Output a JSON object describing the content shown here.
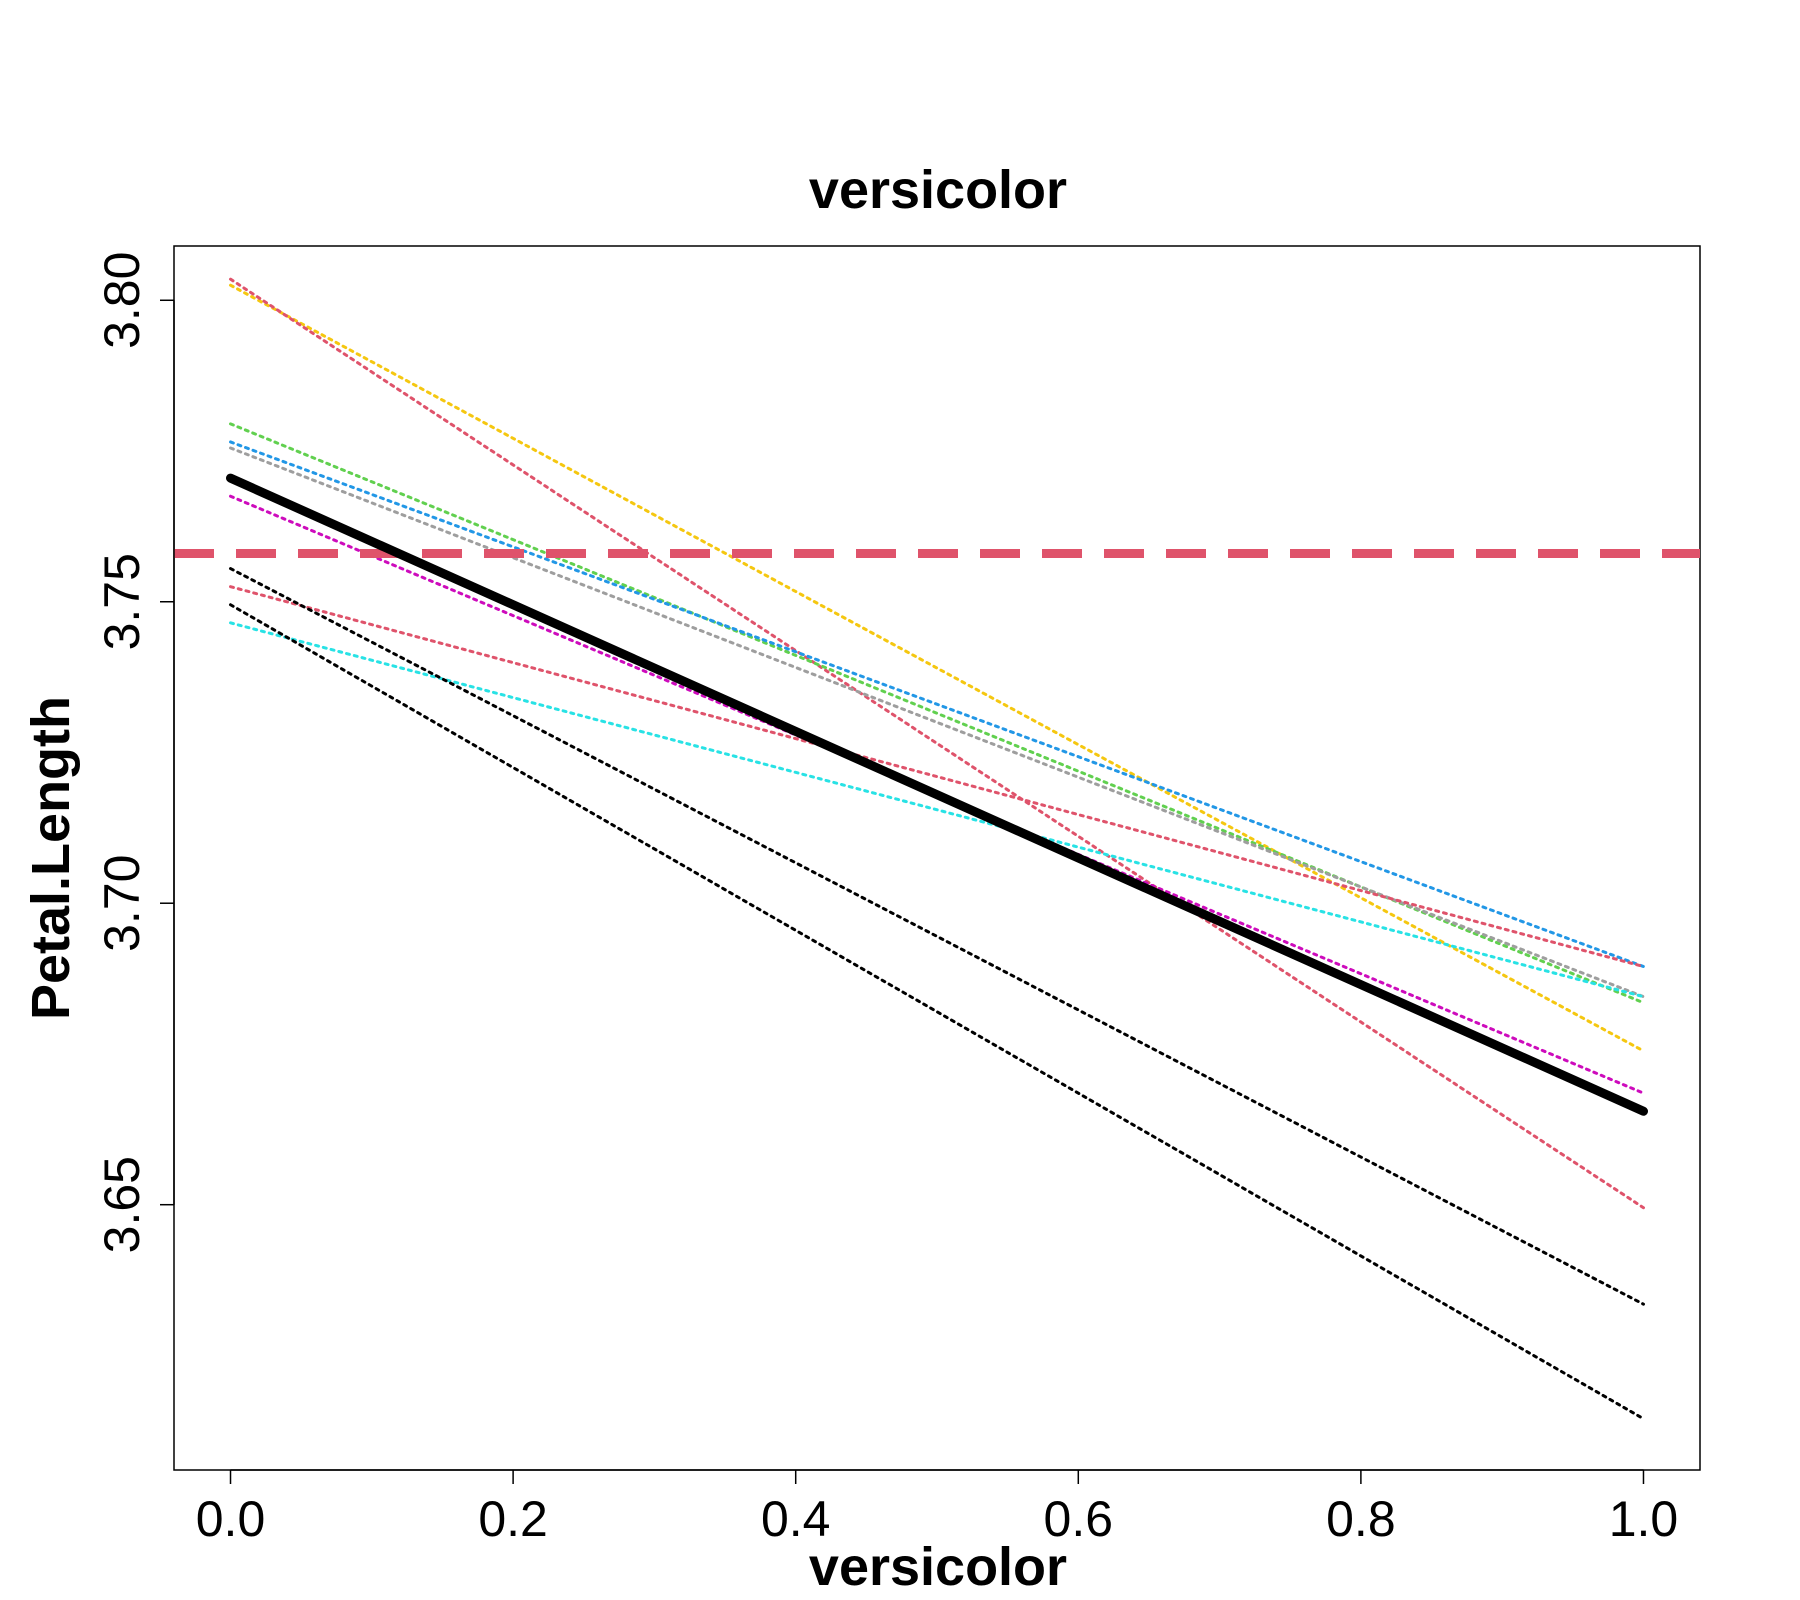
{
  "chart_data": {
    "type": "line",
    "title": "versicolor",
    "xlabel": "versicolor",
    "ylabel": "Petal.Length",
    "xlim": [
      -0.04,
      1.04
    ],
    "ylim": [
      3.606,
      3.809
    ],
    "x_ticks": [
      0.0,
      0.2,
      0.4,
      0.6,
      0.8,
      1.0
    ],
    "x_tick_labels": [
      "0.0",
      "0.2",
      "0.4",
      "0.6",
      "0.8",
      "1.0"
    ],
    "y_ticks": [
      3.65,
      3.7,
      3.75,
      3.8
    ],
    "y_tick_labels": [
      "3.65",
      "3.70",
      "3.75",
      "3.80"
    ],
    "grid": false,
    "legend": "none",
    "reference_line": {
      "y": 3.758,
      "color": "#DF536B",
      "style": "dashed"
    },
    "main_series": {
      "x": [
        0,
        1
      ],
      "values": [
        3.7705,
        3.6655
      ],
      "color": "#000000"
    },
    "series": [
      {
        "x": [
          0,
          1
        ],
        "values": [
          3.8025,
          3.6755
        ],
        "color": "#F5C710"
      },
      {
        "x": [
          0,
          1
        ],
        "values": [
          3.8035,
          3.6495
        ],
        "color": "#DF536B"
      },
      {
        "x": [
          0,
          1
        ],
        "values": [
          3.7795,
          3.6835
        ],
        "color": "#61D04F"
      },
      {
        "x": [
          0,
          1
        ],
        "values": [
          3.7765,
          3.6895
        ],
        "color": "#2297E6"
      },
      {
        "x": [
          0,
          1
        ],
        "values": [
          3.7755,
          3.6845
        ],
        "color": "#9E9E9E"
      },
      {
        "x": [
          0,
          1
        ],
        "values": [
          3.7675,
          3.6685
        ],
        "color": "#CD0BBC"
      },
      {
        "x": [
          0,
          1
        ],
        "values": [
          3.7525,
          3.6895
        ],
        "color": "#DF536B"
      },
      {
        "x": [
          0,
          1
        ],
        "values": [
          3.7465,
          3.6845
        ],
        "color": "#28E2E5"
      },
      {
        "x": [
          0,
          1
        ],
        "values": [
          3.7555,
          3.6335
        ],
        "color": "#000000"
      },
      {
        "x": [
          0,
          1
        ],
        "values": [
          3.7495,
          3.6145
        ],
        "color": "#000000"
      }
    ]
  }
}
